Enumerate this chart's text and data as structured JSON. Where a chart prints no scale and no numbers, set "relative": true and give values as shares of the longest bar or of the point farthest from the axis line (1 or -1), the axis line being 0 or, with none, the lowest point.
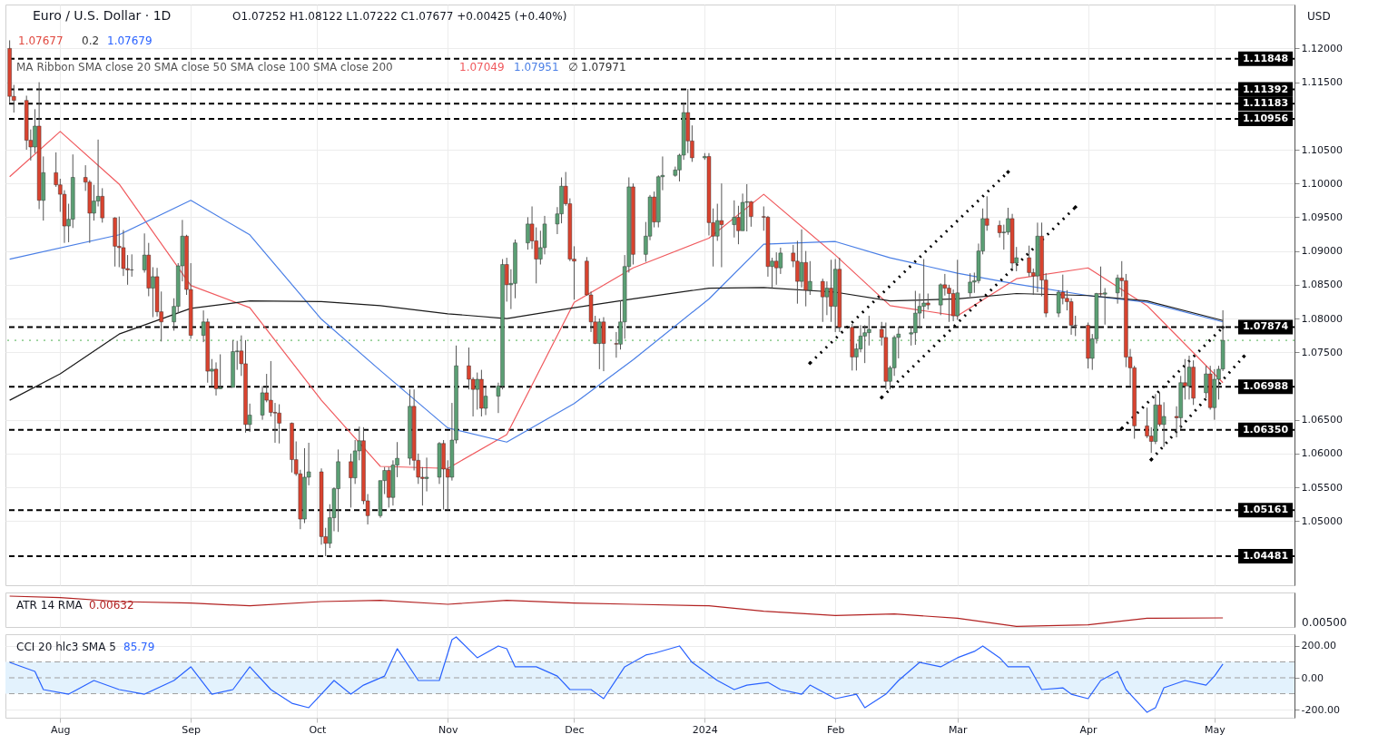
{
  "chart_data": [
    {
      "type": "candlestick",
      "title": "Euro / U.S. Dollar · 1D",
      "subtitle": "O1.07252 H1.08122 L1.07222 C1.07677 +0.00425 (+0.40%)",
      "annotations": [
        "1.07677",
        "0.2",
        "1.07679",
        "MA Ribbon SMA close 20 SMA close 50 SMA close 100 SMA close 200",
        "1.07049",
        "1.07951",
        "∅",
        "1.07971",
        "USD"
      ],
      "marker": "none",
      "x": [
        "2023-07-20",
        "2023-07-21",
        "2023-07-24",
        "2023-07-25",
        "2023-07-26",
        "2023-07-27",
        "2023-07-28",
        "2023-07-31",
        "2023-08-01",
        "2023-08-02",
        "2023-08-03",
        "2023-08-04",
        "2023-08-07",
        "2023-08-08",
        "2023-08-09",
        "2023-08-10",
        "2023-08-11",
        "2023-08-14",
        "2023-08-15",
        "2023-08-16",
        "2023-08-17",
        "2023-08-18",
        "2023-08-21",
        "2023-08-22",
        "2023-08-23",
        "2023-08-24",
        "2023-08-25",
        "2023-08-28",
        "2023-08-29",
        "2023-08-30",
        "2023-08-31",
        "2023-09-01",
        "2023-09-04",
        "2023-09-05",
        "2023-09-06",
        "2023-09-07",
        "2023-09-08",
        "2023-09-11",
        "2023-09-12",
        "2023-09-13",
        "2023-09-14",
        "2023-09-15",
        "2023-09-18",
        "2023-09-19",
        "2023-09-20",
        "2023-09-21",
        "2023-09-22",
        "2023-09-25",
        "2023-09-26",
        "2023-09-27",
        "2023-09-28",
        "2023-09-29",
        "2023-10-02",
        "2023-10-03",
        "2023-10-04",
        "2023-10-05",
        "2023-10-06",
        "2023-10-09",
        "2023-10-10",
        "2023-10-11",
        "2023-10-12",
        "2023-10-13",
        "2023-10-16",
        "2023-10-17",
        "2023-10-18",
        "2023-10-19",
        "2023-10-20",
        "2023-10-23",
        "2023-10-24",
        "2023-10-25",
        "2023-10-26",
        "2023-10-27",
        "2023-10-30",
        "2023-10-31",
        "2023-11-01",
        "2023-11-02",
        "2023-11-03",
        "2023-11-06",
        "2023-11-07",
        "2023-11-08",
        "2023-11-09",
        "2023-11-10",
        "2023-11-13",
        "2023-11-14",
        "2023-11-15",
        "2023-11-16",
        "2023-11-17",
        "2023-11-20",
        "2023-11-21",
        "2023-11-22",
        "2023-11-23",
        "2023-11-24",
        "2023-11-27",
        "2023-11-28",
        "2023-11-29",
        "2023-11-30",
        "2023-12-01",
        "2023-12-04",
        "2023-12-05",
        "2023-12-06",
        "2023-12-07",
        "2023-12-08",
        "2023-12-11",
        "2023-12-12",
        "2023-12-13",
        "2023-12-14",
        "2023-12-15",
        "2023-12-18",
        "2023-12-19",
        "2023-12-20",
        "2023-12-21",
        "2023-12-22",
        "2023-12-25",
        "2023-12-26",
        "2023-12-27",
        "2023-12-28",
        "2023-12-29",
        "2024-01-01",
        "2024-01-02",
        "2024-01-03",
        "2024-01-04",
        "2024-01-05",
        "2024-01-08",
        "2024-01-09",
        "2024-01-10",
        "2024-01-11",
        "2024-01-12",
        "2024-01-15",
        "2024-01-16",
        "2024-01-17",
        "2024-01-18",
        "2024-01-19",
        "2024-01-22",
        "2024-01-23",
        "2024-01-24",
        "2024-01-25",
        "2024-01-26",
        "2024-01-29",
        "2024-01-30",
        "2024-01-31",
        "2024-02-01",
        "2024-02-02",
        "2024-02-05",
        "2024-02-06",
        "2024-02-07",
        "2024-02-08",
        "2024-02-09",
        "2024-02-12",
        "2024-02-13",
        "2024-02-14",
        "2024-02-15",
        "2024-02-16",
        "2024-02-19",
        "2024-02-20",
        "2024-02-21",
        "2024-02-22",
        "2024-02-23",
        "2024-02-26",
        "2024-02-27",
        "2024-02-28",
        "2024-02-29",
        "2024-03-01",
        "2024-03-04",
        "2024-03-05",
        "2024-03-06",
        "2024-03-07",
        "2024-03-08",
        "2024-03-11",
        "2024-03-12",
        "2024-03-13",
        "2024-03-14",
        "2024-03-15",
        "2024-03-18",
        "2024-03-19",
        "2024-03-20",
        "2024-03-21",
        "2024-03-22",
        "2024-03-25",
        "2024-03-26",
        "2024-03-27",
        "2024-03-28",
        "2024-03-29",
        "2024-04-01",
        "2024-04-02",
        "2024-04-03",
        "2024-04-04",
        "2024-04-05",
        "2024-04-08",
        "2024-04-09",
        "2024-04-10",
        "2024-04-11",
        "2024-04-12",
        "2024-04-15",
        "2024-04-16",
        "2024-04-17",
        "2024-04-18",
        "2024-04-19",
        "2024-04-22",
        "2024-04-23",
        "2024-04-24",
        "2024-04-25",
        "2024-04-26",
        "2024-04-29",
        "2024-04-30",
        "2024-05-01",
        "2024-05-02",
        "2024-05-03"
      ],
      "ohlc": [
        [
          1.12,
          1.1212,
          1.112,
          1.1129
        ],
        [
          1.1129,
          1.1146,
          1.1105,
          1.1123
        ],
        [
          1.1123,
          1.113,
          1.105,
          1.1064
        ],
        [
          1.1064,
          1.108,
          1.1034,
          1.1054
        ],
        [
          1.1054,
          1.111,
          1.1045,
          1.1085
        ],
        [
          1.1085,
          1.115,
          1.0962,
          1.0975
        ],
        [
          1.0975,
          1.104,
          1.0945,
          1.1016
        ],
        [
          1.1016,
          1.1046,
          1.0995,
          1.0998
        ],
        [
          1.0998,
          1.1007,
          1.0958,
          1.0984
        ],
        [
          1.0984,
          1.099,
          1.0912,
          1.0937
        ],
        [
          1.0937,
          1.097,
          1.0913,
          1.0947
        ],
        [
          1.0947,
          1.1043,
          1.0934,
          1.1009
        ],
        [
          1.1009,
          1.1027,
          1.0989,
          1.1002
        ],
        [
          1.1002,
          1.1005,
          1.0912,
          1.0956
        ],
        [
          1.0956,
          1.0998,
          1.0945,
          1.0974
        ],
        [
          1.0974,
          1.1065,
          1.0966,
          1.0981
        ],
        [
          1.0981,
          1.0993,
          1.0942,
          1.0949
        ],
        [
          1.0949,
          1.095,
          1.0877,
          1.0907
        ],
        [
          1.0907,
          1.0951,
          1.0876,
          1.0905
        ],
        [
          1.0905,
          1.0931,
          1.0863,
          1.0874
        ],
        [
          1.0874,
          1.0894,
          1.085,
          1.0872
        ],
        [
          1.0872,
          1.0895,
          1.0862,
          1.0872
        ],
        [
          1.0872,
          1.0926,
          1.0868,
          1.0894
        ],
        [
          1.0894,
          1.0912,
          1.0833,
          1.0845
        ],
        [
          1.0845,
          1.0876,
          1.0802,
          1.0862
        ],
        [
          1.0862,
          1.0875,
          1.0803,
          1.081
        ],
        [
          1.081,
          1.084,
          1.0766,
          1.0795
        ],
        [
          1.0795,
          1.083,
          1.0782,
          1.0818
        ],
        [
          1.0818,
          1.0882,
          1.0808,
          1.0878
        ],
        [
          1.0878,
          1.0946,
          1.0855,
          1.0922
        ],
        [
          1.0922,
          1.0924,
          1.0835,
          1.0843
        ],
        [
          1.0843,
          1.0882,
          1.077,
          1.0775
        ],
        [
          1.0775,
          1.0812,
          1.0765,
          1.0795
        ],
        [
          1.0795,
          1.08,
          1.0705,
          1.0722
        ],
        [
          1.0722,
          1.074,
          1.07,
          1.0725
        ],
        [
          1.0725,
          1.0735,
          1.0686,
          1.0696
        ],
        [
          1.0696,
          1.0747,
          1.0696,
          1.0698
        ],
        [
          1.0698,
          1.0768,
          1.0698,
          1.0751
        ],
        [
          1.0751,
          1.0767,
          1.0724,
          1.0752
        ],
        [
          1.0752,
          1.0775,
          1.0715,
          1.0733
        ],
        [
          1.0733,
          1.0768,
          1.0631,
          1.0643
        ],
        [
          1.0643,
          1.0674,
          1.0632,
          1.0657
        ],
        [
          1.0657,
          1.07,
          1.065,
          1.069
        ],
        [
          1.069,
          1.0718,
          1.0676,
          1.0679
        ],
        [
          1.0679,
          1.0737,
          1.0655,
          1.0661
        ],
        [
          1.0661,
          1.0675,
          1.0616,
          1.066
        ],
        [
          1.066,
          1.0673,
          1.0615,
          1.0645
        ],
        [
          1.0645,
          1.0646,
          1.0572,
          1.0591
        ],
        [
          1.0591,
          1.0618,
          1.0567,
          1.057
        ],
        [
          1.057,
          1.0576,
          1.0488,
          1.0503
        ],
        [
          1.0503,
          1.0608,
          1.0497,
          1.0565
        ],
        [
          1.0565,
          1.0616,
          1.0553,
          1.0573
        ],
        [
          1.0573,
          1.0578,
          1.0465,
          1.0477
        ],
        [
          1.0477,
          1.049,
          1.0448,
          1.0467
        ],
        [
          1.0467,
          1.0525,
          1.046,
          1.0505
        ],
        [
          1.0505,
          1.055,
          1.0485,
          1.0548
        ],
        [
          1.0548,
          1.0606,
          1.0484,
          1.0588
        ],
        [
          1.0588,
          1.06,
          1.052,
          1.0564
        ],
        [
          1.0564,
          1.062,
          1.0555,
          1.0604
        ],
        [
          1.0604,
          1.064,
          1.059,
          1.0619
        ],
        [
          1.0619,
          1.0639,
          1.0525,
          1.053
        ],
        [
          1.053,
          1.054,
          1.0495,
          1.0508
        ],
        [
          1.0508,
          1.056,
          1.0505,
          1.056
        ],
        [
          1.056,
          1.058,
          1.054,
          1.0575
        ],
        [
          1.0575,
          1.058,
          1.052,
          1.0535
        ],
        [
          1.0535,
          1.059,
          1.0523,
          1.0583
        ],
        [
          1.0583,
          1.0617,
          1.0565,
          1.0593
        ],
        [
          1.0593,
          1.0695,
          1.0583,
          1.067
        ],
        [
          1.067,
          1.0695,
          1.0575,
          1.059
        ],
        [
          1.059,
          1.06,
          1.0555,
          1.0565
        ],
        [
          1.0565,
          1.058,
          1.0523,
          1.0563
        ],
        [
          1.0563,
          1.0594,
          1.0544,
          1.0565
        ],
        [
          1.0565,
          1.0617,
          1.0555,
          1.0615
        ],
        [
          1.0615,
          1.062,
          1.0517,
          1.0577
        ],
        [
          1.0577,
          1.059,
          1.0516,
          1.0565
        ],
        [
          1.0565,
          1.0675,
          1.056,
          1.062
        ],
        [
          1.062,
          1.076,
          1.0615,
          1.073
        ],
        [
          1.073,
          1.0757,
          1.0695,
          1.071
        ],
        [
          1.071,
          1.0713,
          1.0655,
          1.0695
        ],
        [
          1.0695,
          1.072,
          1.0665,
          1.071
        ],
        [
          1.071,
          1.0724,
          1.0655,
          1.0667
        ],
        [
          1.0667,
          1.07,
          1.0657,
          1.0685
        ],
        [
          1.0685,
          1.0705,
          1.066,
          1.07
        ],
        [
          1.07,
          1.0888,
          1.0695,
          1.088
        ],
        [
          1.088,
          1.089,
          1.0825,
          1.085
        ],
        [
          1.085,
          1.0873,
          1.0814,
          1.0852
        ],
        [
          1.0852,
          1.0917,
          1.083,
          1.0912
        ],
        [
          1.0912,
          1.095,
          1.0902,
          1.094
        ],
        [
          1.094,
          1.0966,
          1.0903,
          1.0915
        ],
        [
          1.0915,
          1.0935,
          1.0852,
          1.0888
        ],
        [
          1.0888,
          1.093,
          1.088,
          1.0905
        ],
        [
          1.0905,
          1.0952,
          1.0895,
          1.094
        ],
        [
          1.094,
          1.0965,
          1.0925,
          1.0955
        ],
        [
          1.0955,
          1.1009,
          1.0941,
          1.0996
        ],
        [
          1.0996,
          1.1017,
          1.0967,
          1.097
        ],
        [
          1.097,
          1.0978,
          1.0885,
          1.0888
        ],
        [
          1.0888,
          1.0907,
          1.0828,
          1.0885
        ],
        [
          1.0885,
          1.0891,
          1.0834,
          1.0835
        ],
        [
          1.0835,
          1.084,
          1.078,
          1.0795
        ],
        [
          1.0795,
          1.0804,
          1.0762,
          1.0763
        ],
        [
          1.0763,
          1.08,
          1.0725,
          1.0795
        ],
        [
          1.0795,
          1.0802,
          1.0722,
          1.0763
        ],
        [
          1.0763,
          1.078,
          1.0742,
          1.0762
        ],
        [
          1.0762,
          1.0827,
          1.0754,
          1.0795
        ],
        [
          1.0795,
          1.0894,
          1.077,
          1.0877
        ],
        [
          1.0877,
          1.1009,
          1.0868,
          1.0995
        ],
        [
          1.0995,
          1.1,
          1.088,
          1.0895
        ],
        [
          1.0895,
          1.0943,
          1.0884,
          1.0922
        ],
        [
          1.0922,
          1.0983,
          1.0916,
          1.098
        ],
        [
          1.098,
          1.0988,
          1.0935,
          1.0943
        ],
        [
          1.0943,
          1.1012,
          1.0935,
          1.101
        ],
        [
          1.101,
          1.104,
          1.099,
          1.1012
        ],
        [
          1.1012,
          1.1025,
          1.101,
          1.102
        ],
        [
          1.102,
          1.1044,
          1.1003,
          1.1042
        ],
        [
          1.1042,
          1.112,
          1.1035,
          1.1105
        ],
        [
          1.1105,
          1.114,
          1.1045,
          1.1063
        ],
        [
          1.1063,
          1.1086,
          1.1032,
          1.1038
        ],
        [
          1.1038,
          1.1045,
          1.1035,
          1.104
        ],
        [
          1.104,
          1.1045,
          1.0923,
          1.0942
        ],
        [
          1.0942,
          1.0963,
          1.0877,
          1.0922
        ],
        [
          1.0922,
          1.097,
          1.0915,
          1.0945
        ],
        [
          1.0945,
          1.1,
          1.0876,
          1.0939
        ],
        [
          1.0939,
          1.0975,
          1.092,
          1.095
        ],
        [
          1.095,
          1.0967,
          1.091,
          1.093
        ],
        [
          1.093,
          1.0985,
          1.093,
          1.0972
        ],
        [
          1.0972,
          1.0999,
          1.0929,
          1.0973
        ],
        [
          1.0973,
          1.0974,
          1.0936,
          1.0951
        ],
        [
          1.0951,
          1.0966,
          1.093,
          1.095
        ],
        [
          1.095,
          1.0952,
          1.0862,
          1.0877
        ],
        [
          1.0877,
          1.089,
          1.0844,
          1.0885
        ],
        [
          1.0885,
          1.0898,
          1.085,
          1.0875
        ],
        [
          1.0875,
          1.0905,
          1.0866,
          1.0897
        ],
        [
          1.0897,
          1.0909,
          1.0876,
          1.0885
        ],
        [
          1.0885,
          1.0915,
          1.0822,
          1.0855
        ],
        [
          1.0855,
          1.0932,
          1.0846,
          1.0883
        ],
        [
          1.0883,
          1.09,
          1.0818,
          1.0842
        ],
        [
          1.0842,
          1.0885,
          1.0835,
          1.0855
        ],
        [
          1.0855,
          1.0859,
          1.0795,
          1.0832
        ],
        [
          1.0832,
          1.0855,
          1.0805,
          1.0845
        ],
        [
          1.0845,
          1.0887,
          1.0795,
          1.0818
        ],
        [
          1.0818,
          1.0888,
          1.078,
          1.0873
        ],
        [
          1.0873,
          1.089,
          1.078,
          1.0787
        ],
        [
          1.0787,
          1.0792,
          1.0723,
          1.0743
        ],
        [
          1.0743,
          1.0763,
          1.0723,
          1.0755
        ],
        [
          1.0755,
          1.079,
          1.075,
          1.0774
        ],
        [
          1.0774,
          1.079,
          1.0734,
          1.0779
        ],
        [
          1.0779,
          1.0804,
          1.076,
          1.0784
        ],
        [
          1.0784,
          1.0795,
          1.076,
          1.0772
        ],
        [
          1.0772,
          1.0794,
          1.0695,
          1.0707
        ],
        [
          1.0707,
          1.073,
          1.0695,
          1.0727
        ],
        [
          1.0727,
          1.0775,
          1.0715,
          1.0772
        ],
        [
          1.0772,
          1.0788,
          1.0741,
          1.0777
        ],
        [
          1.0777,
          1.0788,
          1.076,
          1.0779
        ],
        [
          1.0779,
          1.0841,
          1.0761,
          1.0808
        ],
        [
          1.0808,
          1.0837,
          1.0785,
          1.0818
        ],
        [
          1.0818,
          1.0888,
          1.08,
          1.0823
        ],
        [
          1.0823,
          1.0837,
          1.0813,
          1.082
        ],
        [
          1.082,
          1.0852,
          1.0805,
          1.085
        ],
        [
          1.085,
          1.0866,
          1.0834,
          1.0845
        ],
        [
          1.0845,
          1.085,
          1.0795,
          1.0837
        ],
        [
          1.0837,
          1.0843,
          1.0796,
          1.0804
        ],
        [
          1.0804,
          1.0887,
          1.0798,
          1.0838
        ],
        [
          1.0838,
          1.0867,
          1.0832,
          1.0854
        ],
        [
          1.0854,
          1.0868,
          1.0838,
          1.0856
        ],
        [
          1.0856,
          1.0911,
          1.0852,
          1.09
        ],
        [
          1.09,
          1.0963,
          1.0895,
          1.0948
        ],
        [
          1.0948,
          1.0981,
          1.093,
          1.0938
        ],
        [
          1.0938,
          1.0945,
          1.092,
          1.0927
        ],
        [
          1.0927,
          1.0939,
          1.0902,
          1.0928
        ],
        [
          1.0928,
          1.0964,
          1.0924,
          1.0948
        ],
        [
          1.0948,
          1.0955,
          1.0872,
          1.0882
        ],
        [
          1.0882,
          1.0906,
          1.087,
          1.089
        ],
        [
          1.089,
          1.0908,
          1.0862,
          1.0868
        ],
        [
          1.0868,
          1.0874,
          1.0835,
          1.0863
        ],
        [
          1.0863,
          1.0942,
          1.0839,
          1.0922
        ],
        [
          1.0922,
          1.0942,
          1.0833,
          1.0857
        ],
        [
          1.0857,
          1.0867,
          1.0802,
          1.0808
        ],
        [
          1.0808,
          1.0842,
          1.0802,
          1.0839
        ],
        [
          1.0839,
          1.0865,
          1.0821,
          1.083
        ],
        [
          1.083,
          1.0842,
          1.0812,
          1.0825
        ],
        [
          1.0825,
          1.083,
          1.0776,
          1.079
        ],
        [
          1.079,
          1.0804,
          1.0774,
          1.079
        ],
        [
          1.079,
          1.0794,
          1.0726,
          1.0741
        ],
        [
          1.0741,
          1.0777,
          1.0724,
          1.077
        ],
        [
          1.077,
          1.0838,
          1.0763,
          1.0837
        ],
        [
          1.0837,
          1.0877,
          1.0832,
          1.0836
        ],
        [
          1.0836,
          1.0845,
          1.0791,
          1.0838
        ],
        [
          1.0838,
          1.0865,
          1.0822,
          1.086
        ],
        [
          1.086,
          1.0885,
          1.0832,
          1.0856
        ],
        [
          1.0856,
          1.0866,
          1.0728,
          1.0743
        ],
        [
          1.0743,
          1.0755,
          1.07,
          1.0727
        ],
        [
          1.0727,
          1.073,
          1.0622,
          1.0641
        ],
        [
          1.0641,
          1.0668,
          1.0623,
          1.0626
        ],
        [
          1.0626,
          1.0639,
          1.0601,
          1.0618
        ],
        [
          1.0618,
          1.0688,
          1.0614,
          1.0672
        ],
        [
          1.0672,
          1.069,
          1.064,
          1.0643
        ],
        [
          1.0643,
          1.0676,
          1.061,
          1.0655
        ],
        [
          1.0655,
          1.067,
          1.0624,
          1.0653
        ],
        [
          1.0653,
          1.0715,
          1.0636,
          1.0705
        ],
        [
          1.0705,
          1.074,
          1.068,
          1.07
        ],
        [
          1.07,
          1.0745,
          1.068,
          1.0728
        ],
        [
          1.0728,
          1.0738,
          1.0672,
          1.0682
        ],
        [
          1.069,
          1.073,
          1.0682,
          1.0718
        ],
        [
          1.0718,
          1.073,
          1.0665,
          1.0668
        ],
        [
          1.0668,
          1.0725,
          1.065,
          1.071
        ],
        [
          1.071,
          1.073,
          1.068,
          1.0725
        ],
        [
          1.07252,
          1.08122,
          1.07222,
          1.07677
        ]
      ],
      "series": [
        {
          "type": "line",
          "color": "#f05a5e",
          "x": [
            "2023-07-20",
            "2023-08-01",
            "2023-08-15",
            "2023-09-01",
            "2023-09-15",
            "2023-10-02",
            "2023-10-16",
            "2023-11-01",
            "2023-11-15",
            "2023-12-01",
            "2023-12-15",
            "2024-01-02",
            "2024-01-15",
            "2024-02-01",
            "2024-02-14",
            "2024-03-01",
            "2024-03-15",
            "2024-04-01",
            "2024-04-15",
            "2024-05-03"
          ],
          "values": [
            1.101,
            1.1077,
            1.0999,
            1.0849,
            1.0816,
            1.0679,
            1.0581,
            1.0578,
            1.0628,
            1.0824,
            1.0875,
            1.0919,
            1.0984,
            1.0894,
            1.0819,
            1.0804,
            1.0859,
            1.0875,
            1.0819,
            1.0705
          ]
        },
        {
          "type": "line",
          "color": "#4a7fe6",
          "x": [
            "2023-07-20",
            "2023-08-15",
            "2023-09-01",
            "2023-09-15",
            "2023-10-02",
            "2023-10-16",
            "2023-11-01",
            "2023-11-15",
            "2023-12-01",
            "2023-12-15",
            "2024-01-02",
            "2024-01-15",
            "2024-02-01",
            "2024-02-14",
            "2024-03-01",
            "2024-03-15",
            "2024-04-01",
            "2024-04-15",
            "2024-05-03"
          ],
          "values": [
            1.0888,
            1.0924,
            1.0975,
            1.0924,
            1.0799,
            1.0723,
            1.0638,
            1.0617,
            1.0674,
            1.0739,
            1.0829,
            1.091,
            1.0914,
            1.089,
            1.0867,
            1.0851,
            1.0834,
            1.0824,
            1.0795
          ]
        },
        {
          "type": "line",
          "color": "#1a1a1a",
          "x": [
            "2023-07-20",
            "2023-08-01",
            "2023-08-15",
            "2023-09-01",
            "2023-09-15",
            "2023-10-02",
            "2023-10-16",
            "2023-11-01",
            "2023-11-15",
            "2023-12-01",
            "2023-12-15",
            "2024-01-02",
            "2024-01-15",
            "2024-02-01",
            "2024-02-14",
            "2024-03-01",
            "2024-03-15",
            "2024-04-01",
            "2024-04-15",
            "2024-05-03"
          ],
          "values": [
            1.0679,
            1.0718,
            1.0777,
            1.0815,
            1.0826,
            1.0825,
            1.0819,
            1.0807,
            1.08,
            1.0816,
            1.0829,
            1.0845,
            1.0846,
            1.0839,
            1.0826,
            1.0829,
            1.0837,
            1.0834,
            1.0826,
            1.0797
          ]
        },
        {
          "type": "line",
          "color": "#000000",
          "line_style": "dotted",
          "marker": "diamond",
          "x": [
            "2024-01-26",
            "2024-03-13"
          ],
          "values": [
            1.0734,
            1.1017
          ]
        },
        {
          "type": "line",
          "color": "#000000",
          "line_style": "dotted",
          "marker": "diamond",
          "x": [
            "2024-02-12",
            "2024-03-29"
          ],
          "values": [
            1.0683,
            1.0965
          ]
        },
        {
          "type": "line",
          "color": "#000000",
          "line_style": "dotted",
          "marker": "diamond",
          "x": [
            "2024-04-09",
            "2024-05-03"
          ],
          "values": [
            1.0637,
            1.0787
          ]
        },
        {
          "type": "line",
          "color": "#000000",
          "line_style": "dotted",
          "marker": "diamond",
          "x": [
            "2024-04-16",
            "2024-05-08"
          ],
          "values": [
            1.0591,
            1.0744
          ]
        }
      ],
      "ref_lines": [
        {
          "axis": "y",
          "value": 1.11848,
          "label": "1.11848",
          "color": "#000000",
          "line_style": "dashed"
        },
        {
          "axis": "y",
          "value": 1.11392,
          "label": "1.11392",
          "color": "#000000",
          "line_style": "dashed"
        },
        {
          "axis": "y",
          "value": 1.11183,
          "label": "1.11183",
          "color": "#000000",
          "line_style": "dashed"
        },
        {
          "axis": "y",
          "value": 1.10956,
          "label": "1.10956",
          "color": "#000000",
          "line_style": "dashed"
        },
        {
          "axis": "y",
          "value": 1.07874,
          "label": "1.07874",
          "color": "#000000",
          "line_style": "dashed"
        },
        {
          "axis": "y",
          "value": 1.06988,
          "label": "1.06988",
          "color": "#000000",
          "line_style": "dashed"
        },
        {
          "axis": "y",
          "value": 1.0635,
          "label": "1.06350",
          "color": "#000000",
          "line_style": "dashed"
        },
        {
          "axis": "y",
          "value": 1.05161,
          "label": "1.05161",
          "color": "#000000",
          "line_style": "dashed"
        },
        {
          "axis": "y",
          "value": 1.04481,
          "label": "1.04481",
          "color": "#000000",
          "line_style": "dashed"
        },
        {
          "axis": "y",
          "value": 1.07677,
          "label": null,
          "color": "#4caf50",
          "line_style": "dotted"
        }
      ],
      "xlim": [
        "2023-07-19",
        "2024-05-20"
      ],
      "xticks": [
        {
          "value": "2023-08-01",
          "label": null
        },
        {
          "value": "2023-09-01",
          "label": null
        },
        {
          "value": "2023-10-01",
          "label": null
        },
        {
          "value": "2023-11-01",
          "label": null
        },
        {
          "value": "2023-12-01",
          "label": null
        },
        {
          "value": "2024-01-01",
          "label": null
        },
        {
          "value": "2024-02-01",
          "label": null
        },
        {
          "value": "2024-03-01",
          "label": null
        },
        {
          "value": "2024-04-01",
          "label": null
        },
        {
          "value": "2024-05-01",
          "label": null
        }
      ],
      "ylim": [
        1.0405,
        1.1265
      ],
      "yticks": [
        {
          "value": 1.05,
          "label": "1.05000"
        },
        {
          "value": 1.055,
          "label": "1.05500"
        },
        {
          "value": 1.06,
          "label": "1.06000"
        },
        {
          "value": 1.065,
          "label": "1.06500"
        },
        {
          "value": 1.075,
          "label": "1.07500"
        },
        {
          "value": 1.08,
          "label": "1.08000"
        },
        {
          "value": 1.085,
          "label": "1.08500"
        },
        {
          "value": 1.09,
          "label": "1.09000"
        },
        {
          "value": 1.095,
          "label": "1.09500"
        },
        {
          "value": 1.1,
          "label": "1.10000"
        },
        {
          "value": 1.105,
          "label": "1.10500"
        },
        {
          "value": 1.115,
          "label": "1.11500"
        },
        {
          "value": 1.12,
          "label": "1.12000"
        }
      ],
      "grid": true,
      "tick_labels": "y"
    },
    {
      "type": "line",
      "title": "ATR 14 RMA",
      "annotations": [
        "0.00632",
        "0.00500"
      ],
      "relative": true,
      "series": [
        {
          "color": "#b22222",
          "x": [
            "2023-07-20",
            "2023-08-01",
            "2023-08-15",
            "2023-09-01",
            "2023-09-15",
            "2023-10-02",
            "2023-10-16",
            "2023-11-01",
            "2023-11-15",
            "2023-12-01",
            "2023-12-15",
            "2024-01-02",
            "2024-01-15",
            "2024-02-01",
            "2024-02-15",
            "2024-03-01",
            "2024-03-15",
            "2024-04-01",
            "2024-04-15",
            "2024-05-03"
          ],
          "values": [
            1,
            0.95,
            0.82,
            0.77,
            0.68,
            0.82,
            0.86,
            0.73,
            0.86,
            0.77,
            0.73,
            0.68,
            0.5,
            0.36,
            0.41,
            0.27,
            0,
            0.05,
            0.27,
            0.28
          ]
        }
      ],
      "xlim": [
        "2023-07-19",
        "2024-05-20"
      ],
      "xticks": [
        {
          "value": "2023-08-01",
          "label": null
        },
        {
          "value": "2023-09-01",
          "label": null
        },
        {
          "value": "2023-10-01",
          "label": null
        },
        {
          "value": "2023-11-01",
          "label": null
        },
        {
          "value": "2023-12-01",
          "label": null
        },
        {
          "value": "2024-01-01",
          "label": null
        },
        {
          "value": "2024-02-01",
          "label": null
        },
        {
          "value": "2024-03-01",
          "label": null
        },
        {
          "value": "2024-04-01",
          "label": null
        },
        {
          "value": "2024-05-01",
          "label": null
        }
      ],
      "grid": true,
      "tick_labels": "y"
    },
    {
      "type": "line",
      "title": "CCI 20 hlc3 SMA 5",
      "annotations": [
        "85.79"
      ],
      "series": [
        {
          "color": "#2962ff",
          "x": [
            "2023-07-20",
            "2023-07-26",
            "2023-07-28",
            "2023-08-03",
            "2023-08-09",
            "2023-08-15",
            "2023-08-21",
            "2023-08-28",
            "2023-09-01",
            "2023-09-06",
            "2023-09-11",
            "2023-09-15",
            "2023-09-20",
            "2023-09-25",
            "2023-09-29",
            "2023-10-05",
            "2023-10-09",
            "2023-10-12",
            "2023-10-17",
            "2023-10-20",
            "2023-10-25",
            "2023-10-30",
            "2023-11-02",
            "2023-11-03",
            "2023-11-08",
            "2023-11-13",
            "2023-11-15",
            "2023-11-17",
            "2023-11-22",
            "2023-11-27",
            "2023-11-30",
            "2023-12-05",
            "2023-12-08",
            "2023-12-13",
            "2023-12-18",
            "2023-12-20",
            "2023-12-26",
            "2023-12-29",
            "2024-01-04",
            "2024-01-08",
            "2024-01-11",
            "2024-01-16",
            "2024-01-19",
            "2024-01-24",
            "2024-01-26",
            "2024-02-01",
            "2024-02-06",
            "2024-02-08",
            "2024-02-13",
            "2024-02-16",
            "2024-02-21",
            "2024-02-26",
            "2024-03-01",
            "2024-03-05",
            "2024-03-07",
            "2024-03-11",
            "2024-03-13",
            "2024-03-18",
            "2024-03-21",
            "2024-03-26",
            "2024-03-28",
            "2024-04-01",
            "2024-04-04",
            "2024-04-08",
            "2024-04-10",
            "2024-04-15",
            "2024-04-17",
            "2024-04-19",
            "2024-04-24",
            "2024-04-29",
            "2024-05-01",
            "2024-05-03"
          ],
          "values": [
            97,
            40,
            -74,
            -103,
            -17,
            -74,
            -103,
            -17,
            69,
            -103,
            -74,
            69,
            -74,
            -160,
            -188,
            -17,
            -103,
            -46,
            11,
            183,
            -17,
            -17,
            240,
            257,
            126,
            200,
            183,
            69,
            69,
            11,
            -74,
            -74,
            -131,
            69,
            143,
            154,
            200,
            97,
            -17,
            -74,
            -46,
            -29,
            -74,
            -103,
            -46,
            -131,
            -103,
            -188,
            -103,
            -17,
            97,
            69,
            126,
            166,
            200,
            126,
            69,
            69,
            -74,
            -63,
            -103,
            -131,
            -17,
            40,
            -74,
            -217,
            -188,
            -63,
            -17,
            -46,
            11,
            86
          ]
        }
      ],
      "bands": [
        {
          "axis": "y",
          "from": -100,
          "to": 100,
          "color": "#e3f2fd"
        }
      ],
      "ref_lines": [
        {
          "axis": "y",
          "value": 100,
          "label": null,
          "color": "#9e9e9e",
          "line_style": "dashed"
        },
        {
          "axis": "y",
          "value": 0,
          "label": null,
          "color": "#9e9e9e",
          "line_style": "dashed"
        },
        {
          "axis": "y",
          "value": -100,
          "label": null,
          "color": "#9e9e9e",
          "line_style": "dashed"
        }
      ],
      "xlim": [
        "2023-07-19",
        "2024-05-20"
      ],
      "xticks": [
        {
          "value": "2023-08-01",
          "label": "Aug"
        },
        {
          "value": "2023-09-01",
          "label": "Sep"
        },
        {
          "value": "2023-10-01",
          "label": "Oct"
        },
        {
          "value": "2023-11-01",
          "label": "Nov"
        },
        {
          "value": "2023-12-01",
          "label": "Dec"
        },
        {
          "value": "2024-01-01",
          "label": "2024"
        },
        {
          "value": "2024-02-01",
          "label": "Feb"
        },
        {
          "value": "2024-03-01",
          "label": "Mar"
        },
        {
          "value": "2024-04-01",
          "label": "Apr"
        },
        {
          "value": "2024-05-01",
          "label": "May"
        }
      ],
      "ylim": [
        -251,
        274
      ],
      "yticks": [
        {
          "value": 200,
          "label": "200.00"
        },
        {
          "value": 0,
          "label": "0.00"
        },
        {
          "value": -200,
          "label": "-200.00"
        }
      ],
      "grid": true
    }
  ]
}
